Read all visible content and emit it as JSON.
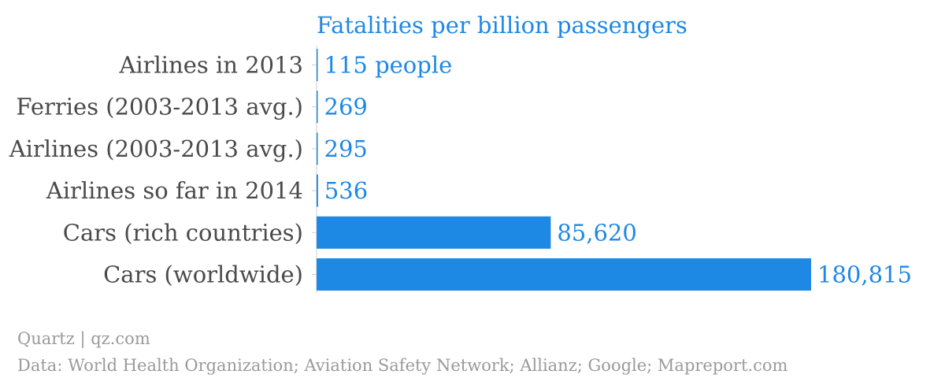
{
  "chart_data": {
    "type": "bar",
    "orientation": "horizontal",
    "title": "Fatalities per billion passengers",
    "categories": [
      "Airlines in 2013",
      "Ferries (2003-2013 avg.)",
      "Airlines (2003-2013 avg.)",
      "Airlines so far in 2014",
      "Cars (rich countries)",
      "Cars (worldwide)"
    ],
    "values": [
      115,
      269,
      295,
      536,
      85620,
      180815
    ],
    "value_labels": [
      "115 people",
      "269",
      "295",
      "536",
      "85,620",
      "180,815"
    ],
    "xlim": [
      0,
      180815
    ],
    "grid": false,
    "legend": "none",
    "colors": {
      "bar": "#1e88e5",
      "value_text": "#1e88e5",
      "title": "#1e88e5",
      "label_text": "#4a4a4a",
      "footer_text": "#9a9a9a"
    }
  },
  "footer": {
    "credit": "Quartz | qz.com",
    "source": "Data: World Health Organization; Aviation Safety Network; Allianz; Google; Mapreport.com"
  }
}
